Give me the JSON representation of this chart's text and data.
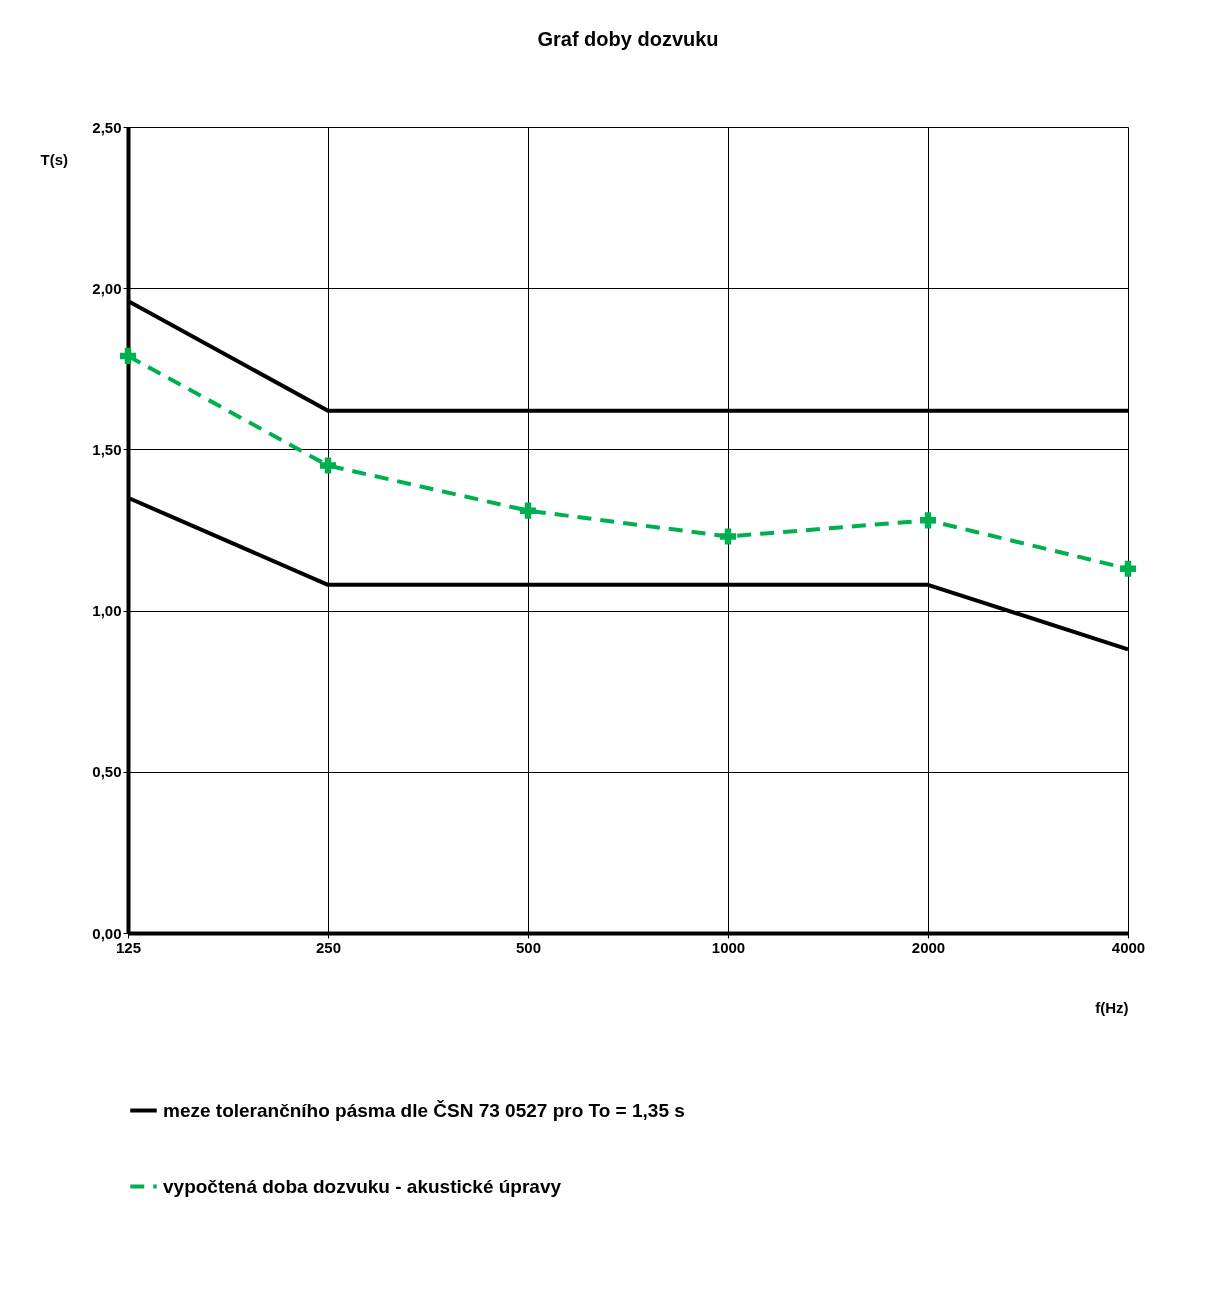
{
  "chart_data": {
    "type": "line",
    "title": "Graf doby dozvuku",
    "xlabel": "f(Hz)",
    "ylabel": "T(s)",
    "categories": [
      "125",
      "250",
      "500",
      "1000",
      "2000",
      "4000"
    ],
    "series": [
      {
        "name": "meze tolerančního pásma dle ČSN 73 0527 pro To = 1,35 s",
        "color": "#000000",
        "values": [
          1.96,
          1.62,
          1.62,
          1.62,
          1.62,
          1.62
        ],
        "marker": "none",
        "line_style": "solid"
      },
      {
        "color": "#000000",
        "values": [
          1.35,
          1.08,
          1.08,
          1.08,
          1.08,
          0.88
        ],
        "marker": "none",
        "line_style": "solid"
      },
      {
        "name": "vypočtená doba dozvuku - akustické úpravy",
        "color": "#00b050",
        "values": [
          1.79,
          1.45,
          1.31,
          1.23,
          1.28,
          1.13
        ],
        "marker": "cross",
        "line_style": "dashed"
      }
    ],
    "ylim": [
      0,
      2.5
    ],
    "yticks": [
      {
        "value": 0,
        "label": "0,00"
      },
      {
        "value": 0.5,
        "label": "0,50"
      },
      {
        "value": 1,
        "label": "1,00"
      },
      {
        "value": 1.5,
        "label": "1,50"
      },
      {
        "value": 2,
        "label": "2,00"
      },
      {
        "value": 2.5,
        "label": "2,50"
      }
    ],
    "grid": true,
    "legend": "bottom"
  }
}
